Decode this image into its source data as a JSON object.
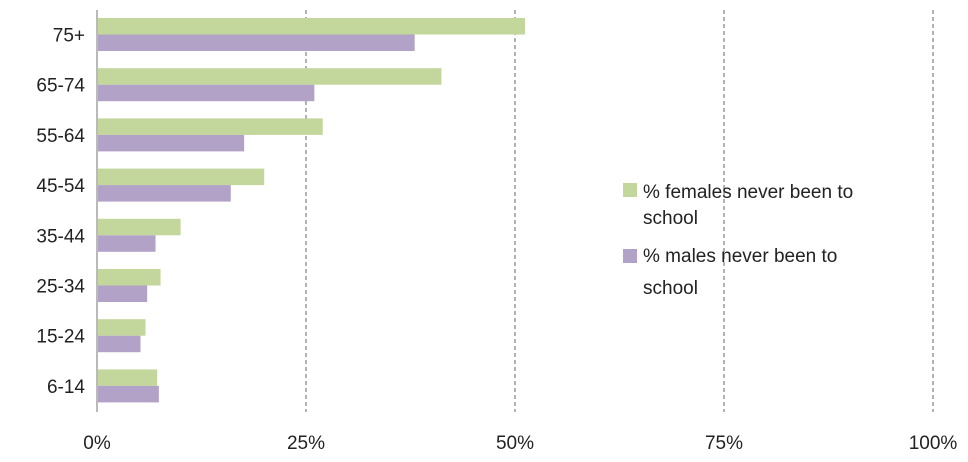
{
  "chart_data": {
    "type": "bar",
    "orientation": "horizontal",
    "categories": [
      "75+",
      "65-74",
      "55-64",
      "45-54",
      "35-44",
      "25-34",
      "15-24",
      "6-14"
    ],
    "series": [
      {
        "name": "% females never been to school",
        "color": "#c3d69b",
        "values": [
          51.2,
          41.2,
          27.0,
          20.0,
          10.0,
          7.6,
          5.8,
          7.2
        ]
      },
      {
        "name": "% males never been to school",
        "color": "#b3a2c7",
        "values": [
          38.0,
          26.0,
          17.6,
          16.0,
          7.0,
          6.0,
          5.2,
          7.4
        ]
      }
    ],
    "x_ticks": [
      "0%",
      "25%",
      "50%",
      "75%",
      "100%"
    ],
    "xlim": [
      0,
      100
    ],
    "grid": "vertical dashed",
    "legend_position": "right",
    "legend": [
      {
        "lines": [
          "% females never been to",
          "school"
        ]
      },
      {
        "lines": [
          "% males never been to",
          "school"
        ]
      }
    ]
  }
}
